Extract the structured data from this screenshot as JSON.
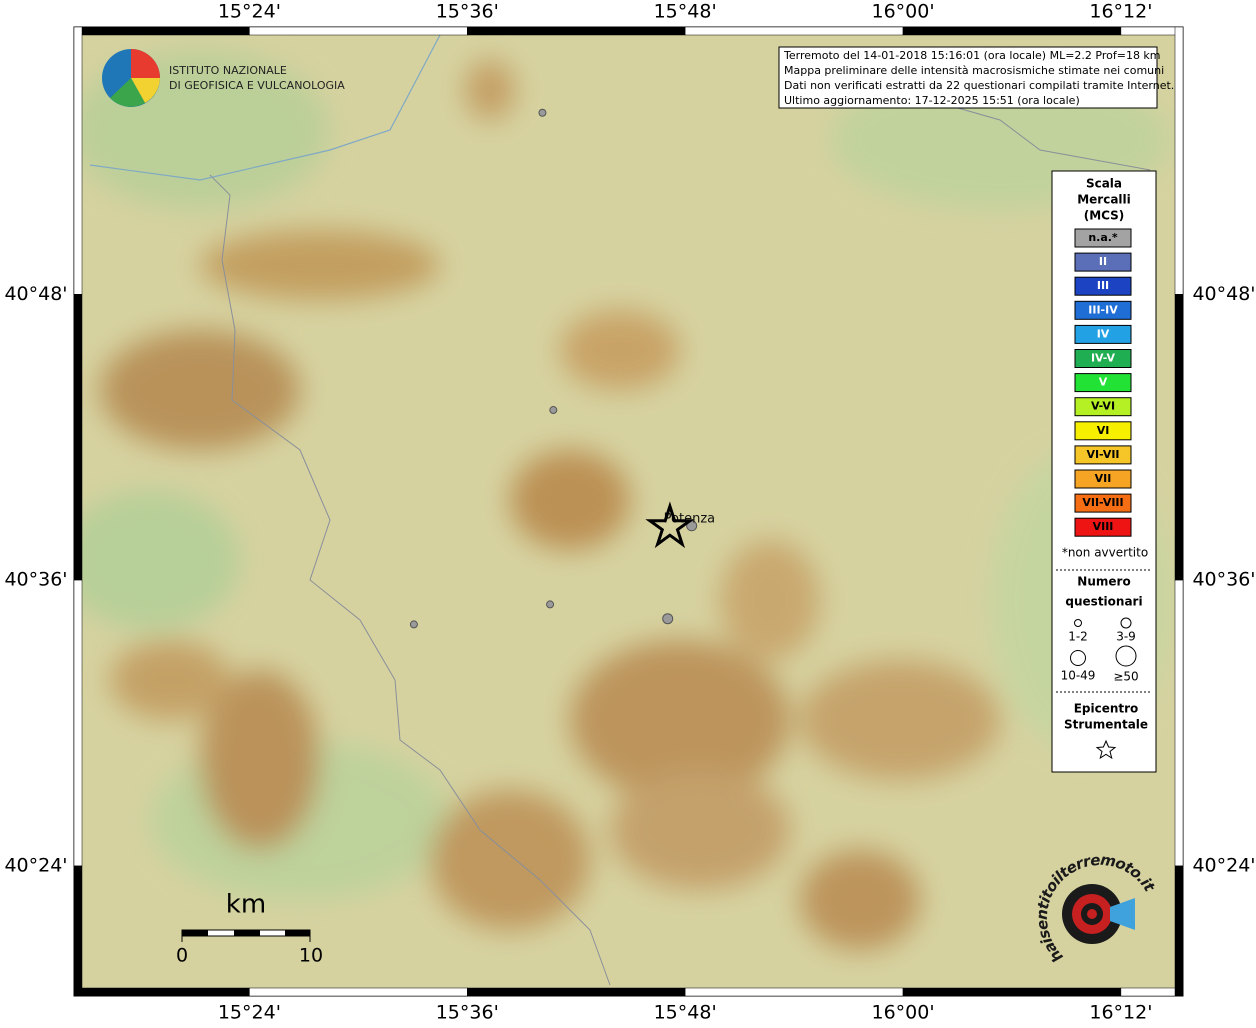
{
  "logo": {
    "line1": "ISTITUTO NAZIONALE",
    "line2": "DI GEOFISICA E VULCANOLOGIA"
  },
  "info": [
    "Terremoto del 14-01-2018 15:16:01 (ora locale) ML=2.2 Prof=18 km",
    "Mappa preliminare delle intensità macrosismiche stimate nei comuni",
    "Dati non verificati estratti da 22 questionari compilati tramite Internet.",
    "Ultimo aggiornamento: 17-12-2025 15:51 (ora locale)"
  ],
  "map": {
    "xlim": [
      15.239,
      16.257
    ],
    "ylim": [
      40.309,
      40.987
    ],
    "xticks": [
      {
        "value": 15.4,
        "label": "15°24'"
      },
      {
        "value": 15.6,
        "label": "15°36'"
      },
      {
        "value": 15.8,
        "label": "15°48'"
      },
      {
        "value": 16.0,
        "label": "16°00'"
      },
      {
        "value": 16.2,
        "label": "16°12'"
      }
    ],
    "yticks": [
      {
        "value": 40.8,
        "label": "40°48'"
      },
      {
        "value": 40.6,
        "label": "40°36'"
      },
      {
        "value": 40.4,
        "label": "40°24'"
      }
    ],
    "grid": true,
    "points": [
      {
        "lon": 15.669,
        "lat": 40.927,
        "class": "1-2"
      },
      {
        "lon": 15.679,
        "lat": 40.719,
        "class": "1-2"
      },
      {
        "lon": 15.806,
        "lat": 40.638,
        "class": "3-9"
      },
      {
        "lon": 15.676,
        "lat": 40.583,
        "class": "1-2"
      },
      {
        "lon": 15.551,
        "lat": 40.569,
        "class": "1-2"
      },
      {
        "lon": 15.784,
        "lat": 40.573,
        "class": "3-9"
      }
    ],
    "place": {
      "name": "Potenza",
      "lon": 15.806,
      "lat": 40.638
    },
    "epicenter": {
      "lon": 15.786,
      "lat": 40.637
    }
  },
  "scale_bar": {
    "unit": "km",
    "start": "0",
    "end": "10"
  },
  "legend": {
    "title": [
      "Scala",
      "Mercalli",
      "(MCS)"
    ],
    "items": [
      {
        "label": "n.a.*",
        "color": "#a3a3a3"
      },
      {
        "label": "II",
        "color": "#5b6fb8"
      },
      {
        "label": "III",
        "color": "#1c44c2"
      },
      {
        "label": "III-IV",
        "color": "#1e6ed6"
      },
      {
        "label": "IV",
        "color": "#22a2e4"
      },
      {
        "label": "IV-V",
        "color": "#1fae52"
      },
      {
        "label": "V",
        "color": "#22e236"
      },
      {
        "label": "V-VI",
        "color": "#b4f024"
      },
      {
        "label": "VI",
        "color": "#f6f000"
      },
      {
        "label": "VI-VII",
        "color": "#f6c628"
      },
      {
        "label": "VII",
        "color": "#f6a423"
      },
      {
        "label": "VII-VIII",
        "color": "#f56e14"
      },
      {
        "label": "VIII",
        "color": "#ee1414"
      }
    ],
    "note": "*non avvertito",
    "count_title": [
      "Numero",
      "questionari"
    ],
    "count_classes": [
      "1-2",
      "3-9",
      "10-49",
      "≥50"
    ],
    "epicenter_title": [
      "Epicentro",
      "Strumentale"
    ]
  },
  "brand": "haisentitoilterremoto.it"
}
